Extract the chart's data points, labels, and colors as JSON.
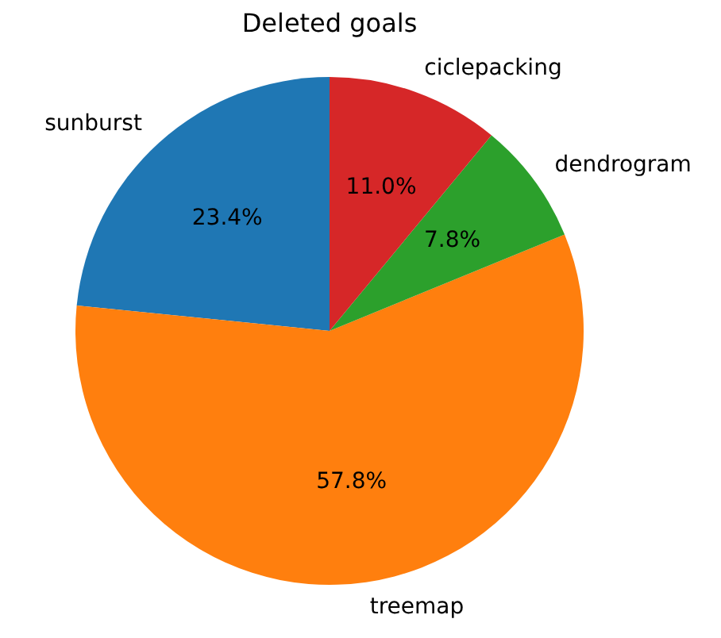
{
  "chart_data": {
    "type": "pie",
    "title": "Deleted goals",
    "categories": [
      "sunburst",
      "treemap",
      "dendrogram",
      "ciclepacking"
    ],
    "values": [
      23.4,
      57.8,
      7.8,
      11.0
    ],
    "value_labels": [
      "23.4%",
      "57.8%",
      "7.8%",
      "11.0%"
    ],
    "colors": [
      "#1f77b4",
      "#ff7f0e",
      "#2ca02c",
      "#d62728"
    ]
  }
}
